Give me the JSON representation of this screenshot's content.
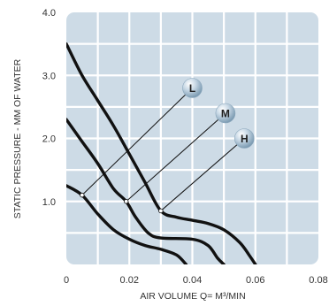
{
  "chart_data": {
    "type": "line",
    "xlabel": "AIR VOLUME Q= M³/MIN",
    "ylabel": "STATIC PRESSURE - MM OF WATER",
    "xlim": [
      0,
      0.08
    ],
    "ylim": [
      0,
      4.0
    ],
    "x_ticks": [
      "0",
      "0.02",
      "0.04",
      "0.06",
      "0.08"
    ],
    "y_ticks": [
      "1.0",
      "2.0",
      "3.0",
      "4.0"
    ],
    "grid": true,
    "series": [
      {
        "name": "L",
        "points": [
          [
            0,
            1.25
          ],
          [
            0.005,
            1.1
          ],
          [
            0.01,
            0.8
          ],
          [
            0.015,
            0.55
          ],
          [
            0.02,
            0.4
          ],
          [
            0.025,
            0.3
          ],
          [
            0.03,
            0.24
          ],
          [
            0.035,
            0.15
          ],
          [
            0.038,
            0.0
          ]
        ]
      },
      {
        "name": "M",
        "points": [
          [
            0,
            2.3
          ],
          [
            0.005,
            1.95
          ],
          [
            0.01,
            1.6
          ],
          [
            0.015,
            1.2
          ],
          [
            0.019,
            1.0
          ],
          [
            0.022,
            0.75
          ],
          [
            0.026,
            0.5
          ],
          [
            0.03,
            0.42
          ],
          [
            0.04,
            0.4
          ],
          [
            0.045,
            0.3
          ],
          [
            0.048,
            0.1
          ],
          [
            0.05,
            0.0
          ]
        ]
      },
      {
        "name": "H",
        "points": [
          [
            0,
            3.5
          ],
          [
            0.005,
            3.0
          ],
          [
            0.01,
            2.6
          ],
          [
            0.015,
            2.2
          ],
          [
            0.02,
            1.75
          ],
          [
            0.025,
            1.3
          ],
          [
            0.03,
            0.85
          ],
          [
            0.035,
            0.75
          ],
          [
            0.04,
            0.7
          ],
          [
            0.045,
            0.65
          ],
          [
            0.05,
            0.55
          ],
          [
            0.055,
            0.35
          ],
          [
            0.058,
            0.15
          ],
          [
            0.06,
            0.0
          ]
        ]
      }
    ],
    "callouts": [
      {
        "label": "L",
        "at": [
          0.005,
          1.1
        ],
        "bubble": [
          0.04,
          2.8
        ]
      },
      {
        "label": "M",
        "at": [
          0.019,
          1.0
        ],
        "bubble": [
          0.0505,
          2.4
        ]
      },
      {
        "label": "H",
        "at": [
          0.03,
          0.85
        ],
        "bubble": [
          0.0565,
          2.0
        ]
      }
    ],
    "colors": {
      "plot_background": "#cddbe6",
      "grid": "#ffffff",
      "curve": "#111111",
      "callout_line": "#111111",
      "bubble": "#9fb9cc"
    }
  }
}
